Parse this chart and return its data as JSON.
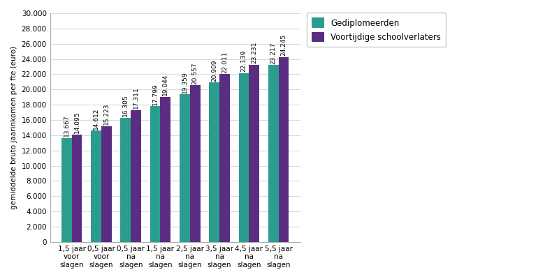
{
  "categories": [
    "1,5 jaar\nvoor\nslagen",
    "0,5 jaar\nvoor\nslagen",
    "0,5 jaar\nna\nslagen",
    "1,5 jaar\nna\nslagen",
    "2,5 jaar\nna\nslagen",
    "3,5 jaar\nna\nslagen",
    "4,5 jaar\nna\nslagen",
    "5,5 jaar\nna\nslagen"
  ],
  "gediplomeerden": [
    13667,
    14612,
    16305,
    17799,
    19359,
    20909,
    22139,
    23217
  ],
  "voortijdig": [
    14095,
    15223,
    17311,
    19044,
    20557,
    22011,
    23231,
    24245
  ],
  "color_gediplomeerden": "#2a9d8f",
  "color_voortijdig": "#5b2d82",
  "ylabel": "gemiddelde bruto jaarinkomen per fte (euro)",
  "ylim": [
    0,
    30000
  ],
  "yticks": [
    0,
    2000,
    4000,
    6000,
    8000,
    10000,
    12000,
    14000,
    16000,
    18000,
    20000,
    22000,
    24000,
    26000,
    28000,
    30000
  ],
  "legend_gediplomeerden": "Gediplomeerden",
  "legend_voortijdig": "Voortijdige schoolverlaters",
  "bar_width": 0.35,
  "label_fontsize": 6.5,
  "tick_fontsize": 7.5,
  "legend_fontsize": 8.5,
  "ylabel_fontsize": 7.5,
  "background_color": "#ffffff",
  "grid_color": "#d0dce8"
}
